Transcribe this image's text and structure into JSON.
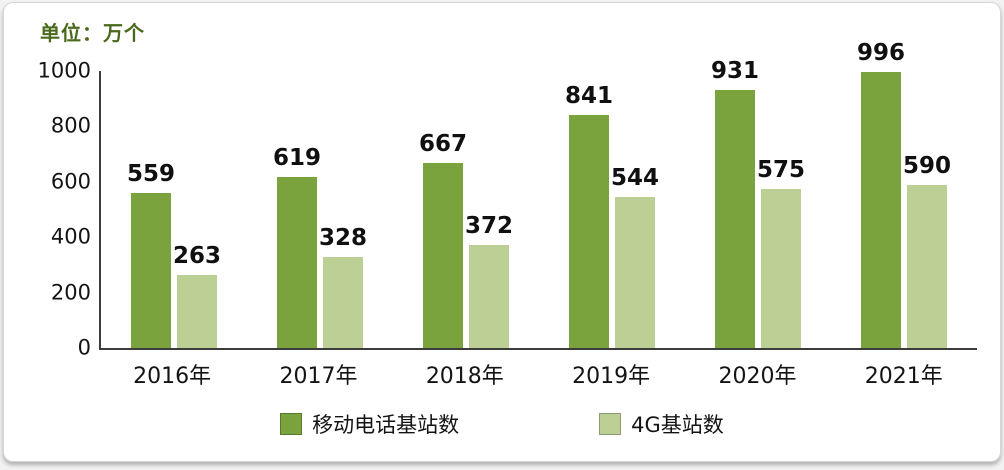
{
  "unit_label": "单位：万个",
  "colors": {
    "primary_bar": "#7aa23d",
    "secondary_bar": "#bccf94",
    "unit_text": "#49691c",
    "axis": "#3c3c3c",
    "value_text": "#101010"
  },
  "chart_data": {
    "type": "bar",
    "categories": [
      "2016年",
      "2017年",
      "2018年",
      "2019年",
      "2020年",
      "2021年"
    ],
    "series": [
      {
        "name": "移动电话基站数",
        "values": [
          559,
          619,
          667,
          841,
          931,
          996
        ],
        "color": "#7aa23d"
      },
      {
        "name": "4G基站数",
        "values": [
          263,
          328,
          372,
          544,
          575,
          590
        ],
        "color": "#bccf94"
      }
    ],
    "title": "",
    "xlabel": "",
    "ylabel": "单位：万个",
    "ylim": [
      0,
      1000
    ],
    "yticks": [
      0,
      200,
      400,
      600,
      800,
      1000
    ],
    "grid": false,
    "legend_position": "bottom",
    "value_labels": true
  }
}
